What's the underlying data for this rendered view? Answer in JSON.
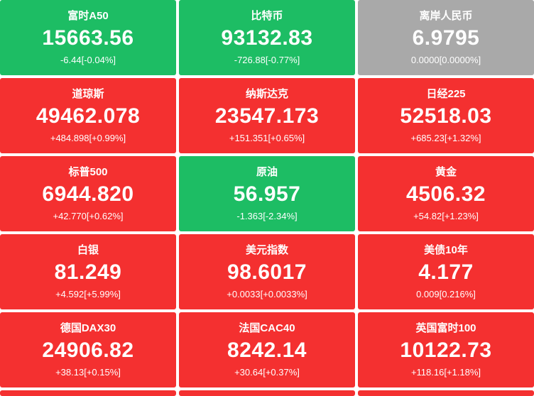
{
  "colors": {
    "up": "#f43030",
    "down": "#1dbd64",
    "flat": "#a9a9a9",
    "text": "#ffffff",
    "background": "#ffffff"
  },
  "grid": {
    "columns": 3,
    "rows": 5
  },
  "tiles": [
    {
      "name": "富时A50",
      "value": "15663.56",
      "change": "-6.44[-0.04%]",
      "state": "down"
    },
    {
      "name": "比特币",
      "value": "93132.83",
      "change": "-726.88[-0.77%]",
      "state": "down"
    },
    {
      "name": "离岸人民币",
      "value": "6.9795",
      "change": "0.0000[0.0000%]",
      "state": "flat"
    },
    {
      "name": "道琼斯",
      "value": "49462.078",
      "change": "+484.898[+0.99%]",
      "state": "up"
    },
    {
      "name": "纳斯达克",
      "value": "23547.173",
      "change": "+151.351[+0.65%]",
      "state": "up"
    },
    {
      "name": "日经225",
      "value": "52518.03",
      "change": "+685.23[+1.32%]",
      "state": "up"
    },
    {
      "name": "标普500",
      "value": "6944.820",
      "change": "+42.770[+0.62%]",
      "state": "up"
    },
    {
      "name": "原油",
      "value": "56.957",
      "change": "-1.363[-2.34%]",
      "state": "down"
    },
    {
      "name": "黄金",
      "value": "4506.32",
      "change": "+54.82[+1.23%]",
      "state": "up"
    },
    {
      "name": "白银",
      "value": "81.249",
      "change": "+4.592[+5.99%]",
      "state": "up"
    },
    {
      "name": "美元指数",
      "value": "98.6017",
      "change": "+0.0033[+0.0033%]",
      "state": "up"
    },
    {
      "name": "美债10年",
      "value": "4.177",
      "change": "0.009[0.216%]",
      "state": "up"
    },
    {
      "name": "德国DAX30",
      "value": "24906.82",
      "change": "+38.13[+0.15%]",
      "state": "up"
    },
    {
      "name": "法国CAC40",
      "value": "8242.14",
      "change": "+30.64[+0.37%]",
      "state": "up"
    },
    {
      "name": "英国富时100",
      "value": "10122.73",
      "change": "+118.16[+1.18%]",
      "state": "up"
    }
  ],
  "cutoff_row": {
    "count": 3,
    "state": "up"
  }
}
